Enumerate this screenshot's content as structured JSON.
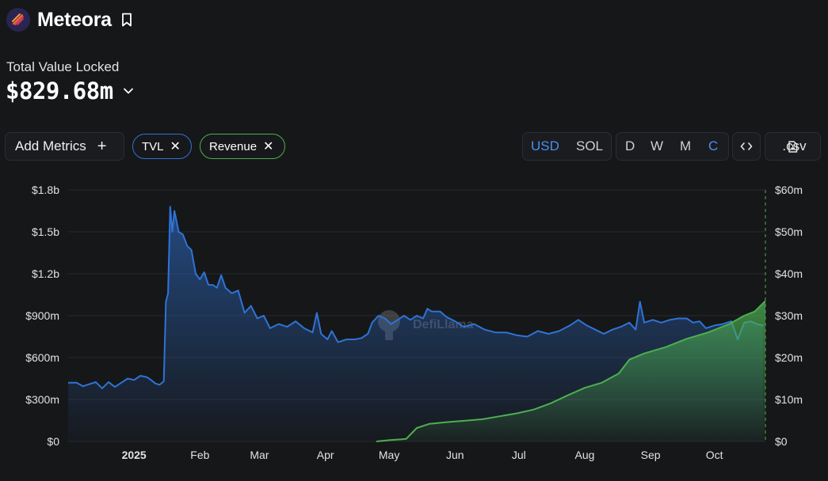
{
  "header": {
    "title": "Meteora",
    "logo_icon": "meteora-logo-icon",
    "bookmark_icon": "bookmark-icon"
  },
  "tvl": {
    "label": "Total Value Locked",
    "value": "$829.68m"
  },
  "controls": {
    "add_metrics": "Add Metrics",
    "add_icon": "+",
    "pills": [
      {
        "label": "TVL",
        "color": "#2f73d6",
        "close": "✕"
      },
      {
        "label": "Revenue",
        "color": "#4caf50",
        "close": "✕"
      }
    ],
    "denominations": [
      "USD",
      "SOL"
    ],
    "active_denomination": "USD",
    "granularity": [
      "D",
      "W",
      "M",
      "C"
    ],
    "active_granularity": "C",
    "embed_icon": "code-icon",
    "csv_label": ".csv",
    "csv_icon": "file-download-icon"
  },
  "chart_data": {
    "type": "area",
    "watermark": "DefiLlama",
    "x_ticks": [
      "2025",
      "Feb",
      "Mar",
      "Apr",
      "May",
      "Jun",
      "Jul",
      "Aug",
      "Sep",
      "Oct"
    ],
    "y_left": {
      "ticks": [
        "$0",
        "$300m",
        "$600m",
        "$900m",
        "$1.2b",
        "$1.5b",
        "$1.8b"
      ],
      "range": [
        0,
        1800
      ]
    },
    "y_right": {
      "ticks": [
        "$0",
        "$10m",
        "$20m",
        "$30m",
        "$40m",
        "$50m",
        "$60m"
      ],
      "range": [
        0,
        60
      ]
    },
    "grid": true,
    "series": [
      {
        "name": "TVL",
        "axis": "left",
        "unit": "$m",
        "color": "#2f73d6",
        "points": [
          [
            "2024-12-01",
            420
          ],
          [
            "2024-12-05",
            420
          ],
          [
            "2024-12-08",
            395
          ],
          [
            "2024-12-11",
            410
          ],
          [
            "2024-12-14",
            425
          ],
          [
            "2024-12-17",
            380
          ],
          [
            "2024-12-20",
            425
          ],
          [
            "2024-12-23",
            390
          ],
          [
            "2024-12-26",
            420
          ],
          [
            "2024-12-29",
            450
          ],
          [
            "2025-01-01",
            440
          ],
          [
            "2025-01-04",
            470
          ],
          [
            "2025-01-07",
            460
          ],
          [
            "2025-01-09",
            440
          ],
          [
            "2025-01-11",
            415
          ],
          [
            "2025-01-13",
            405
          ],
          [
            "2025-01-15",
            430
          ],
          [
            "2025-01-16",
            1000
          ],
          [
            "2025-01-17",
            1060
          ],
          [
            "2025-01-18",
            1680
          ],
          [
            "2025-01-19",
            1500
          ],
          [
            "2025-01-20",
            1650
          ],
          [
            "2025-01-22",
            1500
          ],
          [
            "2025-01-24",
            1480
          ],
          [
            "2025-01-26",
            1400
          ],
          [
            "2025-01-28",
            1370
          ],
          [
            "2025-01-30",
            1200
          ],
          [
            "2025-02-01",
            1160
          ],
          [
            "2025-02-03",
            1210
          ],
          [
            "2025-02-05",
            1120
          ],
          [
            "2025-02-07",
            1120
          ],
          [
            "2025-02-09",
            1100
          ],
          [
            "2025-02-11",
            1190
          ],
          [
            "2025-02-13",
            1100
          ],
          [
            "2025-02-16",
            1060
          ],
          [
            "2025-02-19",
            1080
          ],
          [
            "2025-02-22",
            920
          ],
          [
            "2025-02-25",
            970
          ],
          [
            "2025-02-28",
            880
          ],
          [
            "2025-03-03",
            900
          ],
          [
            "2025-03-06",
            810
          ],
          [
            "2025-03-10",
            840
          ],
          [
            "2025-03-14",
            820
          ],
          [
            "2025-03-18",
            860
          ],
          [
            "2025-03-22",
            810
          ],
          [
            "2025-03-26",
            780
          ],
          [
            "2025-03-28",
            920
          ],
          [
            "2025-03-30",
            770
          ],
          [
            "2025-04-02",
            730
          ],
          [
            "2025-04-04",
            790
          ],
          [
            "2025-04-07",
            710
          ],
          [
            "2025-04-11",
            730
          ],
          [
            "2025-04-15",
            730
          ],
          [
            "2025-04-18",
            740
          ],
          [
            "2025-04-21",
            770
          ],
          [
            "2025-04-23",
            850
          ],
          [
            "2025-04-26",
            900
          ],
          [
            "2025-04-29",
            880
          ],
          [
            "2025-05-02",
            840
          ],
          [
            "2025-05-05",
            870
          ],
          [
            "2025-05-08",
            900
          ],
          [
            "2025-05-11",
            870
          ],
          [
            "2025-05-14",
            900
          ],
          [
            "2025-05-17",
            880
          ],
          [
            "2025-05-19",
            950
          ],
          [
            "2025-05-21",
            930
          ],
          [
            "2025-05-25",
            930
          ],
          [
            "2025-05-28",
            890
          ],
          [
            "2025-06-01",
            860
          ],
          [
            "2025-06-05",
            820
          ],
          [
            "2025-06-10",
            840
          ],
          [
            "2025-06-15",
            800
          ],
          [
            "2025-06-20",
            780
          ],
          [
            "2025-06-25",
            780
          ],
          [
            "2025-06-30",
            760
          ],
          [
            "2025-07-05",
            750
          ],
          [
            "2025-07-10",
            790
          ],
          [
            "2025-07-15",
            770
          ],
          [
            "2025-07-20",
            790
          ],
          [
            "2025-07-25",
            830
          ],
          [
            "2025-07-29",
            870
          ],
          [
            "2025-08-02",
            830
          ],
          [
            "2025-08-06",
            800
          ],
          [
            "2025-08-10",
            770
          ],
          [
            "2025-08-14",
            800
          ],
          [
            "2025-08-18",
            820
          ],
          [
            "2025-08-22",
            850
          ],
          [
            "2025-08-25",
            800
          ],
          [
            "2025-08-27",
            1000
          ],
          [
            "2025-08-29",
            850
          ],
          [
            "2025-09-02",
            870
          ],
          [
            "2025-09-06",
            850
          ],
          [
            "2025-09-10",
            870
          ],
          [
            "2025-09-14",
            880
          ],
          [
            "2025-09-18",
            880
          ],
          [
            "2025-09-21",
            850
          ],
          [
            "2025-09-24",
            860
          ],
          [
            "2025-09-27",
            810
          ],
          [
            "2025-10-01",
            830
          ],
          [
            "2025-10-05",
            840
          ],
          [
            "2025-10-09",
            860
          ],
          [
            "2025-10-12",
            730
          ],
          [
            "2025-10-15",
            850
          ],
          [
            "2025-10-18",
            860
          ],
          [
            "2025-10-21",
            840
          ],
          [
            "2025-10-24",
            830
          ]
        ]
      },
      {
        "name": "Revenue",
        "axis": "right",
        "unit": "$m",
        "color": "#4caf50",
        "points": [
          [
            "2025-04-25",
            0
          ],
          [
            "2025-05-01",
            0.3
          ],
          [
            "2025-05-09",
            0.6
          ],
          [
            "2025-05-14",
            3.2
          ],
          [
            "2025-05-20",
            4.2
          ],
          [
            "2025-05-28",
            4.6
          ],
          [
            "2025-06-07",
            5.0
          ],
          [
            "2025-06-14",
            5.3
          ],
          [
            "2025-06-22",
            6.0
          ],
          [
            "2025-06-30",
            6.7
          ],
          [
            "2025-07-08",
            7.6
          ],
          [
            "2025-07-16",
            9.1
          ],
          [
            "2025-07-24",
            11.0
          ],
          [
            "2025-08-01",
            12.8
          ],
          [
            "2025-08-09",
            14.0
          ],
          [
            "2025-08-17",
            16.2
          ],
          [
            "2025-08-22",
            19.5
          ],
          [
            "2025-08-29",
            21.0
          ],
          [
            "2025-09-08",
            22.5
          ],
          [
            "2025-09-18",
            24.5
          ],
          [
            "2025-09-28",
            26.0
          ],
          [
            "2025-10-08",
            28.0
          ],
          [
            "2025-10-15",
            30.0
          ],
          [
            "2025-10-20",
            31.0
          ],
          [
            "2025-10-25",
            33.5
          ]
        ]
      }
    ]
  }
}
